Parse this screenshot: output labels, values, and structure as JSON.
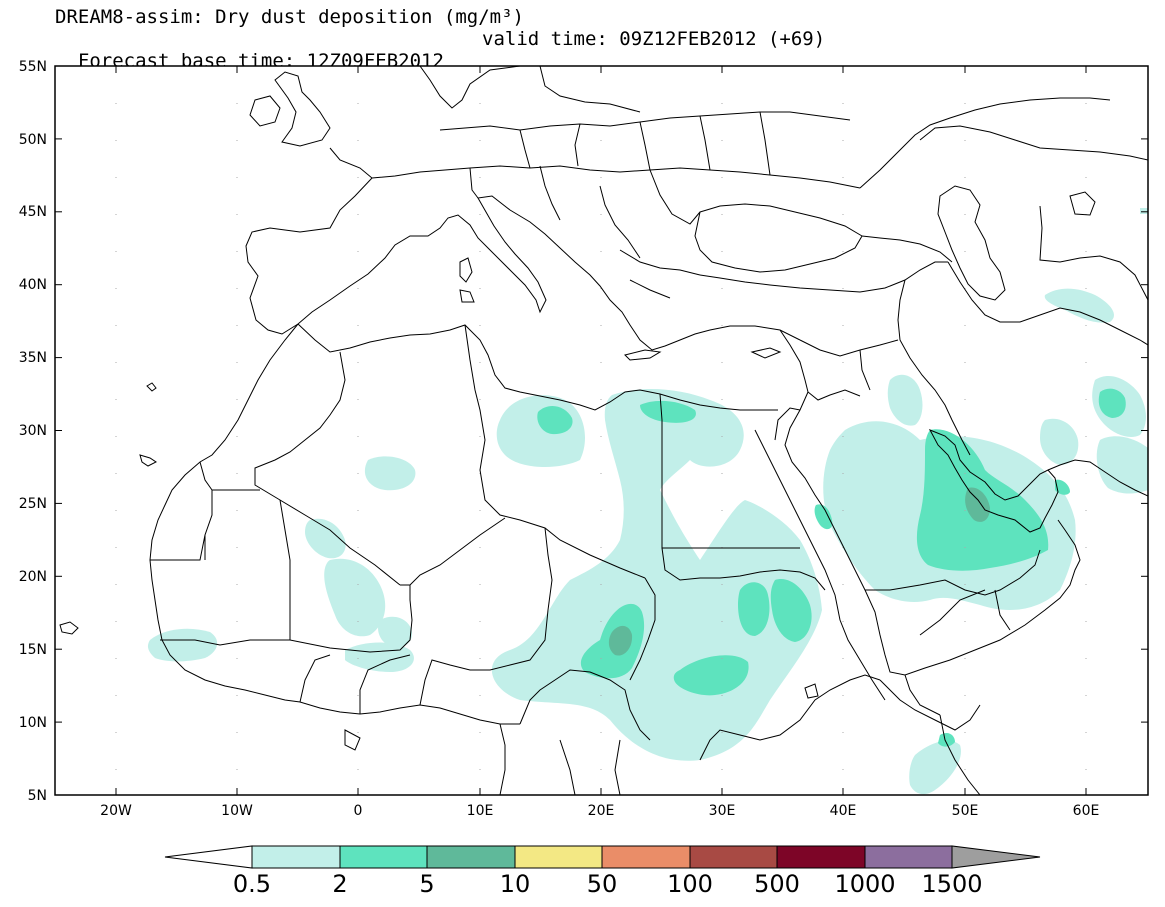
{
  "header": {
    "title_line1": "DREAM8-assim: Dry dust deposition (mg/m³)",
    "forecast_base_time": "Forecast base time: 12Z09FEB2012",
    "valid_time": "valid time: 09Z12FEB2012 (+69)"
  },
  "map": {
    "lat_labels": [
      "55N",
      "50N",
      "45N",
      "40N",
      "35N",
      "30N",
      "25N",
      "20N",
      "15N",
      "10N",
      "5N"
    ],
    "lon_labels": [
      "20W",
      "10W",
      "0",
      "10E",
      "20E",
      "30E",
      "40E",
      "50E",
      "60E"
    ]
  },
  "legend": {
    "labels": [
      "0.5",
      "2",
      "5",
      "10",
      "50",
      "100",
      "500",
      "1000",
      "1500"
    ],
    "colors": [
      "#c2efe9",
      "#5ee3be",
      "#5fb99a",
      "#f3e884",
      "#ea8d68",
      "#a84a44",
      "#7d0527",
      "#8c6e9e"
    ],
    "under_color": "#ffffff",
    "over_color": "#9e9e9e"
  },
  "colors": {
    "light_dust": "#c2efe9",
    "medium_dust": "#5ee3be",
    "heavy_dust": "#5fb99a",
    "borders": "#000000"
  }
}
